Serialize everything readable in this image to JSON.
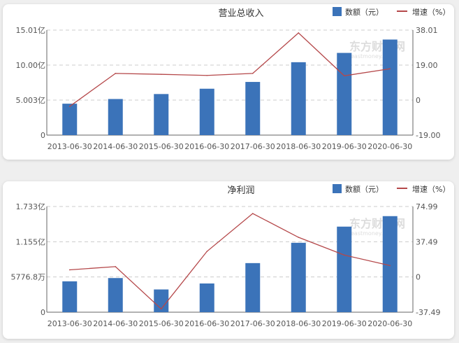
{
  "legend": {
    "bar_label": "数额（元）",
    "line_label": "增速（%）"
  },
  "watermark": {
    "cn": "东方财富网",
    "en": "eastmoney.com"
  },
  "colors": {
    "bar": "#3b73b9",
    "line": "#b5484a",
    "grid": "#cccccc",
    "axis": "#666666"
  },
  "chart_data": [
    {
      "type": "bar+line",
      "title": "营业总收入",
      "categories": [
        "2013-06-30",
        "2014-06-30",
        "2015-06-30",
        "2016-06-30",
        "2017-06-30",
        "2018-06-30",
        "2019-06-30",
        "2020-06-30"
      ],
      "left_ticks": [
        "0",
        "5.003亿",
        "10.00亿",
        "15.01亿"
      ],
      "right_ticks": [
        "-19.00",
        "0",
        "19.00",
        "38.01"
      ],
      "ylim_left": [
        0,
        15.01
      ],
      "ylim_right": [
        -19.0,
        38.01
      ],
      "unit_left": "亿",
      "series": [
        {
          "name": "数额（元）",
          "type": "bar",
          "values": [
            4.49,
            5.16,
            5.87,
            6.63,
            7.6,
            10.42,
            11.75,
            13.66
          ]
        },
        {
          "name": "增速（%）",
          "type": "line",
          "values": [
            -3.4,
            14.5,
            14.0,
            13.4,
            14.5,
            36.5,
            13.2,
            17.0
          ]
        }
      ],
      "grid": true,
      "legend": "top-right"
    },
    {
      "type": "bar+line",
      "title": "净利润",
      "categories": [
        "2013-06-30",
        "2014-06-30",
        "2015-06-30",
        "2016-06-30",
        "2017-06-30",
        "2018-06-30",
        "2019-06-30",
        "2020-06-30"
      ],
      "left_ticks": [
        "0",
        "5776.8万",
        "1.155亿",
        "1.733亿"
      ],
      "right_ticks": [
        "-37.49",
        "0",
        "37.49",
        "74.99"
      ],
      "ylim_left": [
        0,
        1.733
      ],
      "ylim_right": [
        -37.49,
        74.99
      ],
      "unit_left": "亿",
      "series": [
        {
          "name": "数额（元）",
          "type": "bar",
          "values": [
            0.506,
            0.56,
            0.373,
            0.471,
            0.805,
            1.138,
            1.403,
            1.575
          ]
        },
        {
          "name": "增速（%）",
          "type": "line",
          "values": [
            7.6,
            11.0,
            -34.0,
            27.2,
            67.5,
            42.2,
            23.3,
            12.1
          ]
        }
      ],
      "grid": true,
      "legend": "top-right"
    }
  ]
}
